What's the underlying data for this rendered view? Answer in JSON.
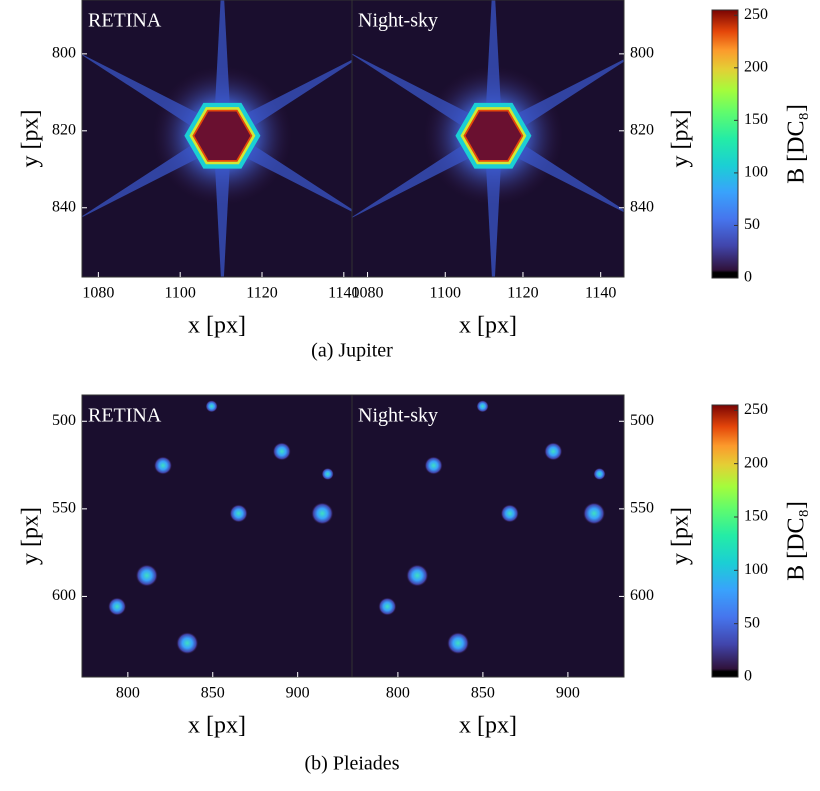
{
  "chart_data": [
    {
      "type": "image",
      "title": "RETINA",
      "xlabel": "x [px]",
      "ylabel": "y [px]",
      "xlim": [
        1076,
        1142
      ],
      "ylim": [
        858,
        786
      ],
      "xticks": [
        1080,
        1100,
        1120,
        1140
      ],
      "yticks": [
        800,
        820,
        840
      ]
    },
    {
      "type": "image",
      "title": "Night-sky",
      "xlabel": "x [px]",
      "ylabel": "y [px]",
      "xlim": [
        1076,
        1146
      ],
      "ylim": [
        858,
        786
      ],
      "xticks": [
        1080,
        1100,
        1120,
        1140
      ],
      "yticks": [
        800,
        820,
        840
      ],
      "colorbar": {
        "label": "B [DC₈]",
        "lim": [
          0,
          255
        ],
        "ticks": [
          0,
          50,
          100,
          150,
          200,
          250
        ]
      }
    },
    {
      "type": "image",
      "title": "RETINA",
      "xlabel": "x [px]",
      "ylabel": "y [px]",
      "xlim": [
        773,
        932
      ],
      "ylim": [
        646,
        485
      ],
      "xticks": [
        800,
        850,
        900
      ],
      "yticks": [
        500,
        550,
        600
      ]
    },
    {
      "type": "image",
      "title": "Night-sky",
      "xlabel": "x [px]",
      "ylabel": "y [px]",
      "xlim": [
        773,
        933
      ],
      "ylim": [
        646,
        485
      ],
      "xticks": [
        800,
        850,
        900
      ],
      "yticks": [
        500,
        550,
        600
      ],
      "colorbar": {
        "label": "B [DC₈]",
        "lim": [
          0,
          255
        ],
        "ticks": [
          0,
          50,
          100,
          150,
          200,
          250
        ]
      }
    }
  ],
  "captions": [
    "(a) Jupiter",
    "(b) Pleiades"
  ]
}
